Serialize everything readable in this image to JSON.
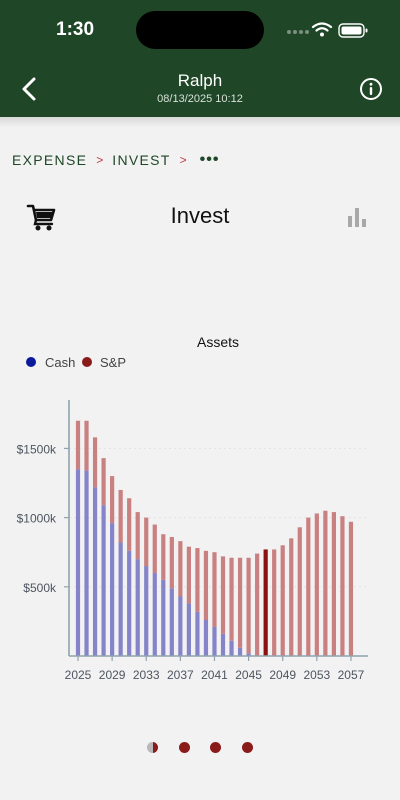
{
  "status_bar": {
    "time": "1:30"
  },
  "header": {
    "title": "Ralph",
    "subtitle": "08/13/2025 10:12"
  },
  "breadcrumb": {
    "items": [
      "EXPENSE",
      "INVEST"
    ],
    "separator": ">",
    "more": "•••"
  },
  "page": {
    "title": "Invest"
  },
  "icons": {
    "back": "chevron-left-icon",
    "info": "info-icon",
    "cart": "cart-icon",
    "chart": "bar-chart-icon"
  },
  "colors": {
    "header_bg": "#1f4627",
    "cash": "#8584c9",
    "sp": "#c98080",
    "sp_highlight": "#8b1010",
    "legend_cash": "#0a1a9a",
    "legend_sp": "#8b1a1a"
  },
  "chart_data": {
    "type": "bar",
    "stacked": true,
    "title": "Assets",
    "x": [
      2025,
      2026,
      2027,
      2028,
      2029,
      2030,
      2031,
      2032,
      2033,
      2034,
      2035,
      2036,
      2037,
      2038,
      2039,
      2040,
      2041,
      2042,
      2043,
      2044,
      2045,
      2046,
      2047,
      2048,
      2049,
      2050,
      2051,
      2052,
      2053,
      2054,
      2055,
      2056,
      2057
    ],
    "x_ticks": [
      "2025",
      "2029",
      "2033",
      "2037",
      "2041",
      "2045",
      "2049",
      "2053",
      "2057"
    ],
    "y_ticks": [
      "$500k",
      "$1000k",
      "$1500k"
    ],
    "y_tick_values": [
      500,
      1000,
      1500
    ],
    "ylim": [
      0,
      1850
    ],
    "series": [
      {
        "name": "Cash",
        "values": [
          1350,
          1340,
          1220,
          1090,
          960,
          820,
          760,
          700,
          650,
          600,
          550,
          490,
          430,
          380,
          320,
          260,
          210,
          160,
          110,
          60,
          20,
          0,
          0,
          0,
          0,
          0,
          0,
          0,
          0,
          0,
          0,
          0,
          0
        ]
      },
      {
        "name": "S&P",
        "values": [
          350,
          360,
          360,
          340,
          340,
          380,
          380,
          340,
          350,
          350,
          330,
          370,
          400,
          410,
          460,
          500,
          540,
          560,
          600,
          650,
          690,
          740,
          770,
          770,
          800,
          850,
          930,
          1000,
          1030,
          1050,
          1040,
          1010,
          970
        ]
      }
    ],
    "highlight_index": 22,
    "legend_position": "top-left",
    "grid": true
  },
  "pagination": {
    "count": 4,
    "active": 0
  }
}
